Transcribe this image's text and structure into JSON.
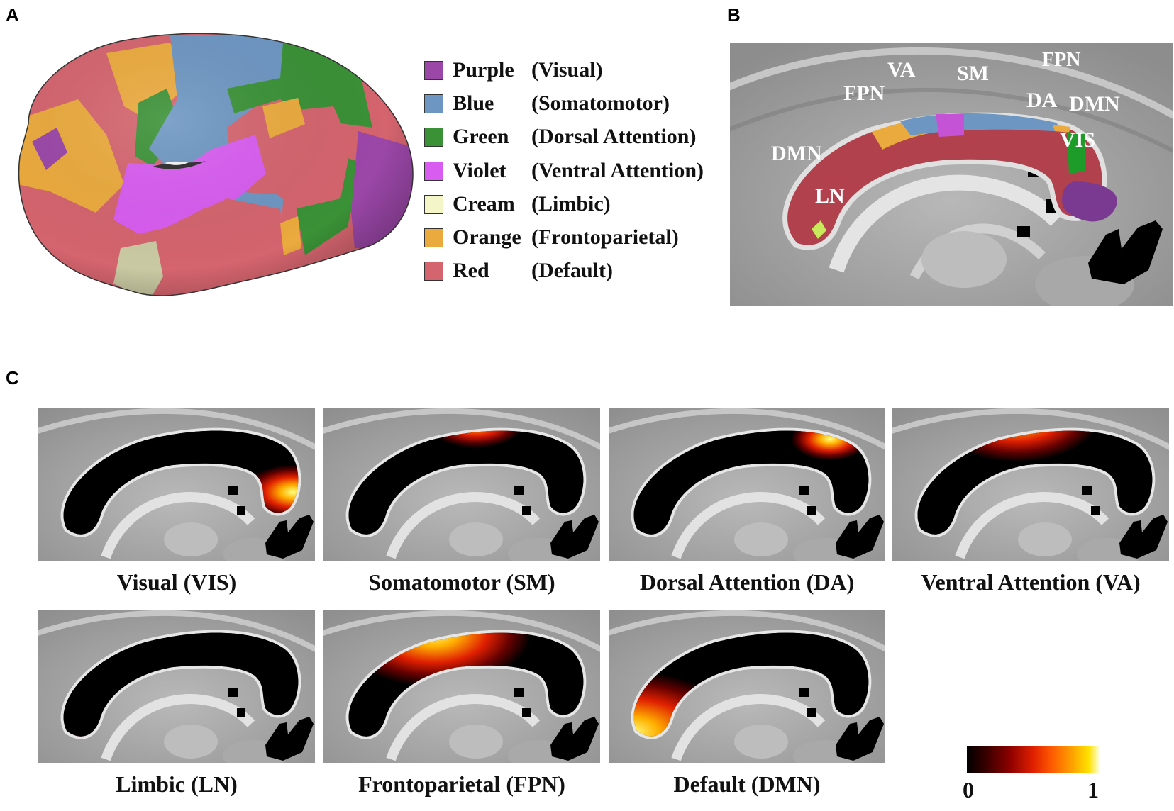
{
  "panels": {
    "a": "A",
    "b": "B",
    "c": "C"
  },
  "legend": [
    {
      "color_name": "Purple",
      "network": "(Visual)",
      "swatch": "#9b47a8"
    },
    {
      "color_name": "Blue",
      "network": "(Somatomotor)",
      "swatch": "#6d96c2"
    },
    {
      "color_name": "Green",
      "network": "(Dorsal Attention)",
      "swatch": "#3a9136"
    },
    {
      "color_name": "Violet",
      "network": "(Ventral Attention)",
      "swatch": "#d85cf0"
    },
    {
      "color_name": "Cream",
      "network": "(Limbic)",
      "swatch": "#f4f6c8"
    },
    {
      "color_name": "Orange",
      "network": "(Frontoparietal)",
      "swatch": "#ebaa3d"
    },
    {
      "color_name": "Red",
      "network": "(Default)",
      "swatch": "#d4646e"
    }
  ],
  "sagittal_labels": {
    "va": "VA",
    "sm": "SM",
    "fpn_front": "FPN",
    "fpn_back": "FPN",
    "da": "DA",
    "dmn_back": "DMN",
    "vis": "VIS",
    "dmn_front": "DMN",
    "ln": "LN"
  },
  "maps": [
    {
      "caption": "Visual (VIS)"
    },
    {
      "caption": "Somatomotor (SM)"
    },
    {
      "caption": "Dorsal Attention (DA)"
    },
    {
      "caption": "Ventral Attention (VA)"
    },
    {
      "caption": "Limbic (LN)"
    },
    {
      "caption": "Frontoparietal (FPN)"
    },
    {
      "caption": "Default (DMN)"
    }
  ],
  "colorbar": {
    "min": "0",
    "max": "1"
  },
  "colors": {
    "visual": "#9b47a8",
    "somatomotor": "#6d96c2",
    "dorsal": "#3a9136",
    "ventral": "#d85cf0",
    "limbic": "#f4f6c8",
    "frontoparietal": "#ebaa3d",
    "default": "#d4646e"
  }
}
